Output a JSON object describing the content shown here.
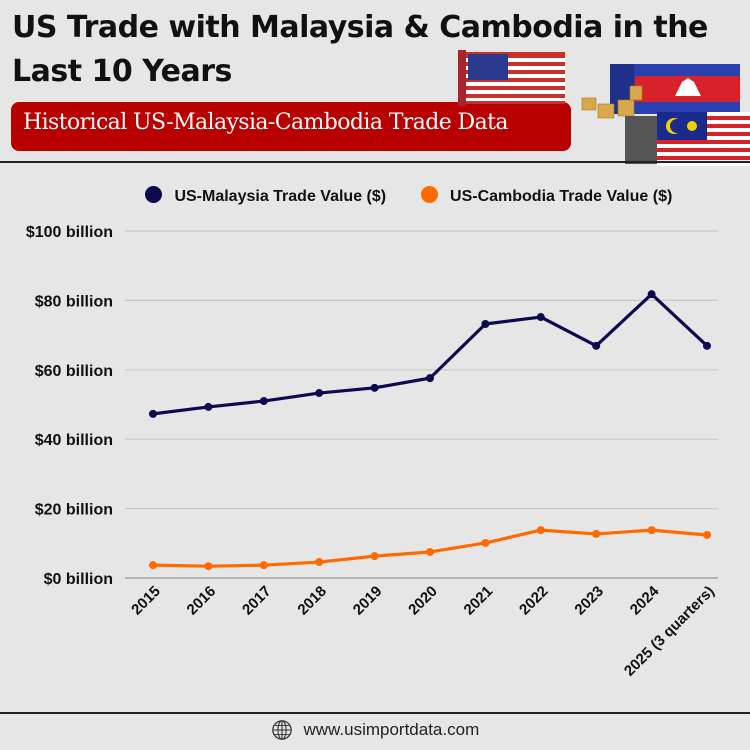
{
  "header": {
    "title": "US Trade with Malaysia & Cambodia in the Last 10 Years",
    "subtitle": "Historical US-Malaysia-Cambodia Trade Data"
  },
  "legend": {
    "series1": "US-Malaysia Trade Value ($)",
    "series2": "US-Cambodia Trade Value ($)"
  },
  "footer": {
    "url": "www.usimportdata.com"
  },
  "colors": {
    "malaysia": "#0d0a4e",
    "cambodia": "#ff6a00",
    "banner": "#b80000"
  },
  "chart_data": {
    "type": "line",
    "title": "US Trade with Malaysia & Cambodia in the Last 10 Years",
    "subtitle": "Historical US-Malaysia-Cambodia Trade Data",
    "xlabel": "",
    "ylabel": "",
    "categories": [
      "2015",
      "2016",
      "2017",
      "2018",
      "2019",
      "2020",
      "2021",
      "2022",
      "2023",
      "2024",
      "2025 (3 quarters)"
    ],
    "series": [
      {
        "name": "US-Malaysia Trade Value ($)",
        "color": "#0d0a4e",
        "values": [
          47.3,
          49.3,
          51.0,
          53.3,
          54.8,
          57.6,
          73.2,
          75.2,
          66.9,
          81.8,
          66.9
        ]
      },
      {
        "name": "US-Cambodia Trade Value ($)",
        "color": "#ff6a00",
        "values": [
          3.7,
          3.4,
          3.7,
          4.6,
          6.3,
          7.5,
          10.1,
          13.8,
          12.7,
          13.8,
          12.4
        ]
      }
    ],
    "units": "billion USD",
    "ylim": [
      0,
      100
    ],
    "yticks": [
      "$0 billion",
      "$20 billion",
      "$40 billion",
      "$60 billion",
      "$80 billion",
      "$100 billion"
    ],
    "ytick_values": [
      0,
      20,
      40,
      60,
      80,
      100
    ],
    "grid": true,
    "legend_position": "top"
  }
}
